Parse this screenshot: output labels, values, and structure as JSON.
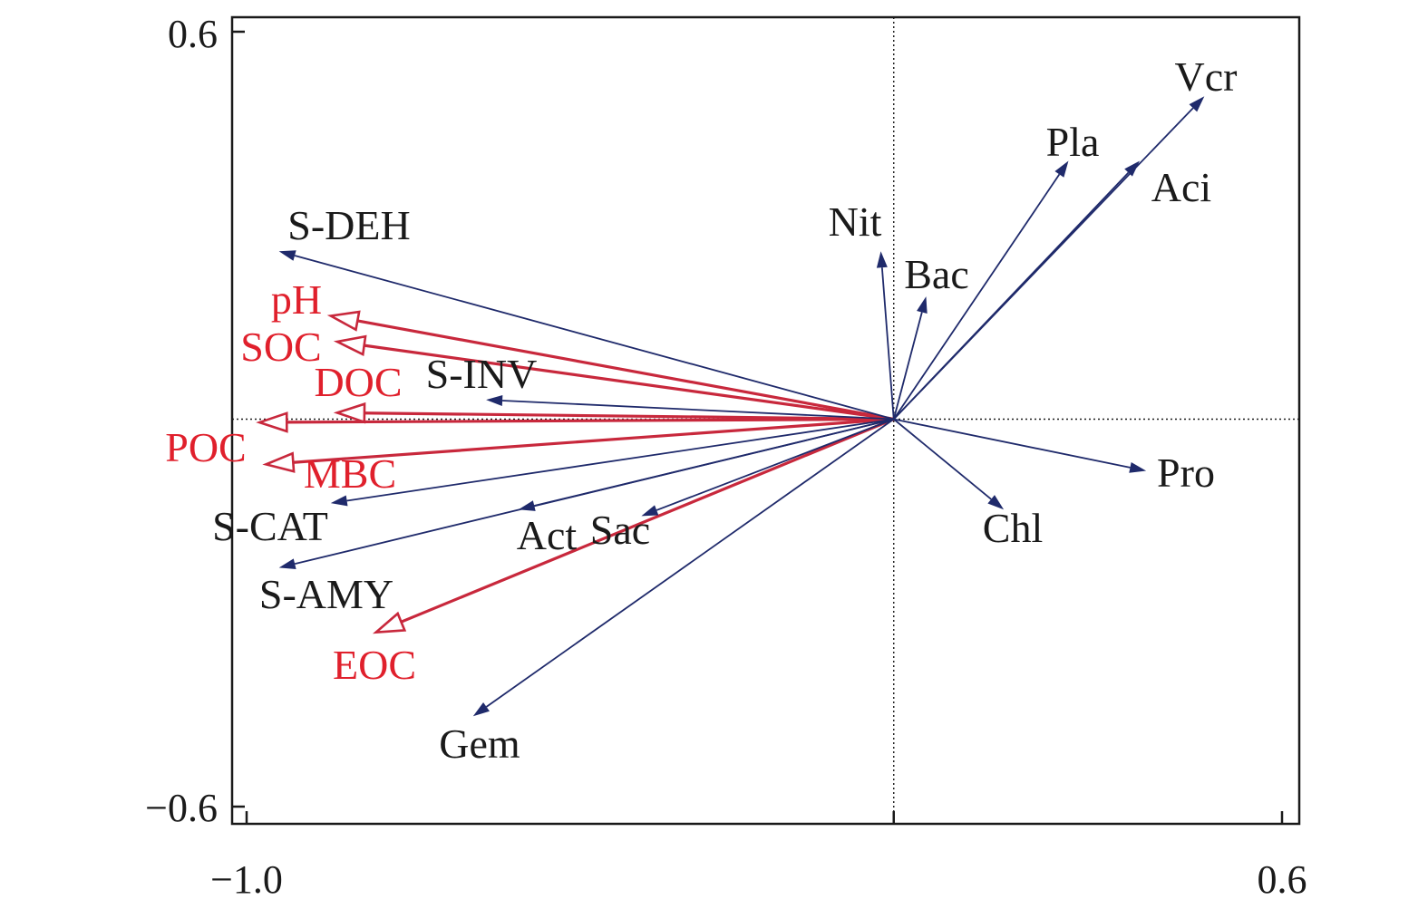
{
  "chart_data": {
    "type": "biplot",
    "xlim": [
      -1.0,
      0.6
    ],
    "ylim": [
      -0.6,
      0.6
    ],
    "x_tick_labels": [
      "−1.0",
      "0.6"
    ],
    "y_tick_labels": [
      "0.6",
      "−0.6"
    ],
    "colors": {
      "species": "#1f2a6b",
      "environment": "#c8283c",
      "label_species": "#1a1a1a",
      "label_environment": "#e0202c"
    },
    "reference_lines": {
      "x": 0,
      "y": 0,
      "style": "dotted"
    },
    "species": [
      {
        "label": "Vcr",
        "x": 0.48,
        "y": 0.5
      },
      {
        "label": "Pla",
        "x": 0.27,
        "y": 0.4
      },
      {
        "label": "Aci",
        "x": 0.38,
        "y": 0.4
      },
      {
        "label": "Nit",
        "x": -0.02,
        "y": 0.26
      },
      {
        "label": "Bac",
        "x": 0.05,
        "y": 0.19
      },
      {
        "label": "Pro",
        "x": 0.39,
        "y": -0.08
      },
      {
        "label": "Chl",
        "x": 0.17,
        "y": -0.14
      },
      {
        "label": "S-DEH",
        "x": -0.95,
        "y": 0.26
      },
      {
        "label": "S-INV",
        "x": -0.63,
        "y": 0.03
      },
      {
        "label": "S-CAT",
        "x": -0.87,
        "y": -0.13
      },
      {
        "label": "S-AMY",
        "x": -0.95,
        "y": -0.23
      },
      {
        "label": "Act",
        "x": -0.58,
        "y": -0.14
      },
      {
        "label": "Sac",
        "x": -0.39,
        "y": -0.15
      },
      {
        "label": "Gem",
        "x": -0.65,
        "y": -0.46
      }
    ],
    "environment": [
      {
        "label": "pH",
        "x": -0.87,
        "y": 0.16
      },
      {
        "label": "SOC",
        "x": -0.86,
        "y": 0.12
      },
      {
        "label": "DOC",
        "x": -0.86,
        "y": 0.01
      },
      {
        "label": "POC",
        "x": -0.98,
        "y": -0.005
      },
      {
        "label": "MBC",
        "x": -0.97,
        "y": -0.07
      },
      {
        "label": "EOC",
        "x": -0.8,
        "y": -0.33
      }
    ]
  }
}
